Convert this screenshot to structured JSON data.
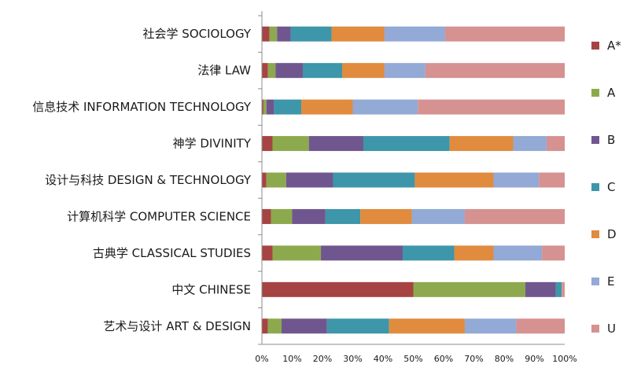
{
  "chart_data": {
    "type": "bar",
    "orientation": "horizontal",
    "stacked": "percent",
    "title": "",
    "xlabel": "",
    "ylabel": "",
    "xlim": [
      0,
      100
    ],
    "x_ticks": [
      "0%",
      "10%",
      "20%",
      "30%",
      "40%",
      "50%",
      "60%",
      "70%",
      "80%",
      "90%",
      "100%"
    ],
    "grid": false,
    "legend_position": "right",
    "categories": [
      "社会学 SOCIOLOGY",
      "法律 LAW",
      "信息技术 INFORMATION TECHNOLOGY",
      "神学 DIVINITY",
      "设计与科技 DESIGN & TECHNOLOGY",
      "计算机科学 COMPUTER SCIENCE",
      "古典学 CLASSICAL STUDIES",
      "中文 CHINESE",
      "艺术与设计 ART & DESIGN"
    ],
    "series": [
      {
        "name": "A*",
        "color": "#a64443",
        "values": [
          2.5,
          2,
          0.5,
          3.5,
          1.5,
          3,
          3.5,
          50,
          2
        ]
      },
      {
        "name": "A",
        "color": "#8caa4d",
        "values": [
          2.5,
          2.5,
          1,
          12,
          6.5,
          7,
          16,
          37,
          4.5
        ]
      },
      {
        "name": "B",
        "color": "#70568f",
        "values": [
          4.5,
          9,
          2.5,
          18,
          15.5,
          11,
          27,
          10,
          15
        ]
      },
      {
        "name": "C",
        "color": "#3d96a9",
        "values": [
          13.5,
          13,
          9,
          28.5,
          27,
          11.5,
          17,
          2,
          20.5
        ]
      },
      {
        "name": "D",
        "color": "#e08b3e",
        "values": [
          17.5,
          14,
          17,
          21,
          26,
          17,
          13,
          0,
          25
        ]
      },
      {
        "name": "E",
        "color": "#93a9d6",
        "values": [
          20,
          13.5,
          21.5,
          11,
          15,
          17.5,
          16,
          0,
          17
        ]
      },
      {
        "name": "U",
        "color": "#d69191",
        "values": [
          39.5,
          46,
          48.5,
          6,
          8.5,
          33,
          7.5,
          1,
          16
        ]
      }
    ]
  }
}
